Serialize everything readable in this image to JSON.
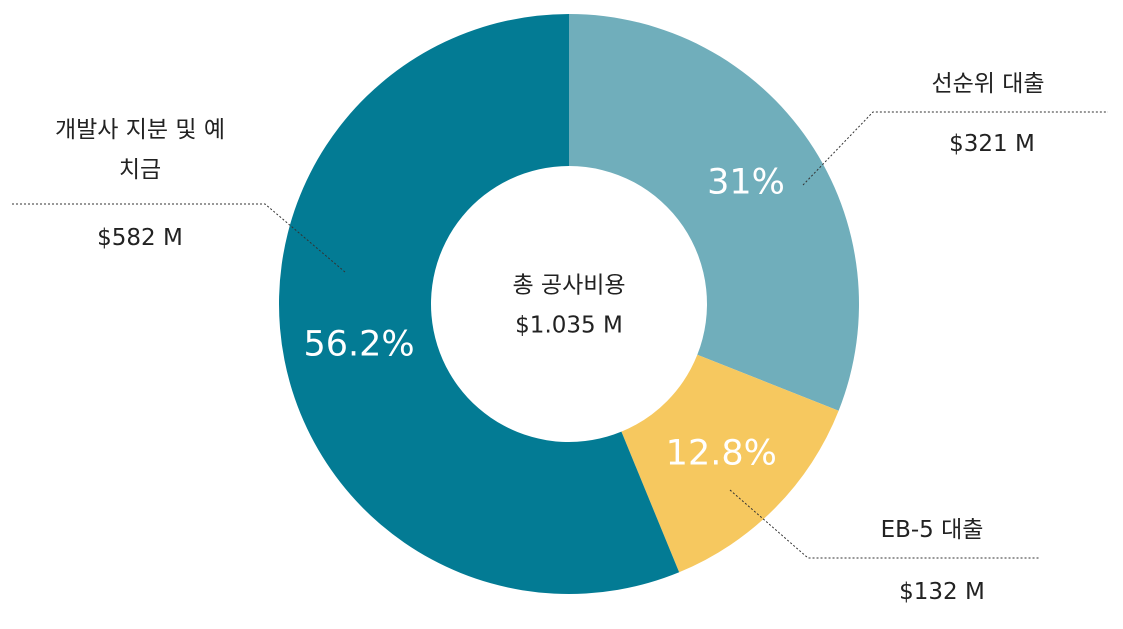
{
  "chart_data": {
    "type": "donut",
    "categories": [
      "선순위 대출",
      "EB-5 대출",
      "개발사 지분 및 예치금"
    ],
    "values": [
      31,
      12.8,
      56.2
    ],
    "value_labels": [
      "31%",
      "12.8%",
      "56.2%"
    ],
    "amount_labels": [
      "$321 M",
      "$132 M",
      "$582 M"
    ],
    "colors": [
      "#70aebb",
      "#f6c85f",
      "#037b94"
    ],
    "center_label": "총 공사비용",
    "center_value": "$1.035 M"
  }
}
